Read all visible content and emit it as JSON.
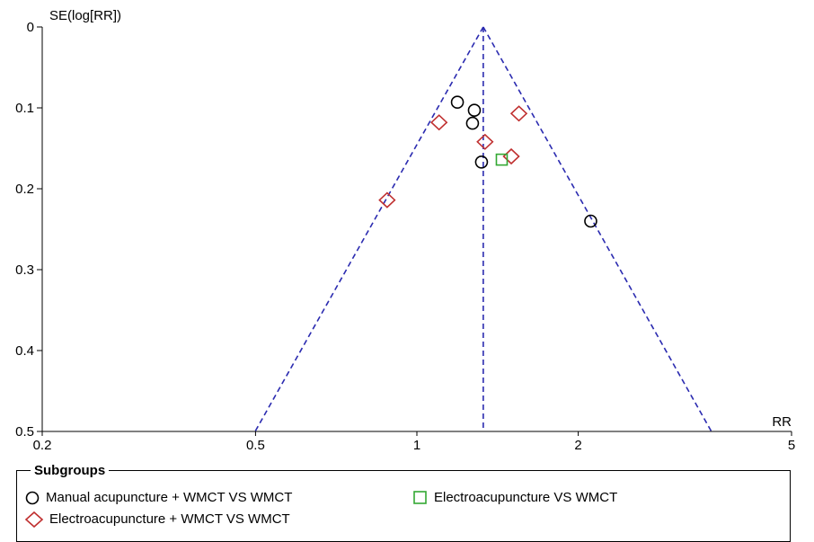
{
  "chart_data": {
    "type": "scatter",
    "title": "",
    "xlabel": "RR",
    "ylabel": "SE(log[RR])",
    "x_scale": "log",
    "xlim": [
      0.2,
      5
    ],
    "ylim": [
      0,
      0.5
    ],
    "y_inverted": true,
    "x_ticks": [
      0.2,
      0.5,
      1,
      2,
      5
    ],
    "x_tick_labels": [
      "0.2",
      "0.5",
      "1",
      "2",
      "5"
    ],
    "y_ticks": [
      0,
      0.1,
      0.2,
      0.3,
      0.4,
      0.5
    ],
    "y_tick_labels": [
      "0",
      "0.1",
      "0.2",
      "0.3",
      "0.4",
      "0.5"
    ],
    "pooled_estimate": 1.33,
    "funnel_line_color": "#2b2bb0",
    "legend": {
      "title": "Subgroups",
      "position": "bottom"
    },
    "series": [
      {
        "name": "Manual acupuncture + WMCT VS WMCT",
        "marker": "circle",
        "color": "#000000",
        "points": [
          {
            "x": 1.19,
            "y": 0.093
          },
          {
            "x": 1.28,
            "y": 0.103
          },
          {
            "x": 1.27,
            "y": 0.119
          },
          {
            "x": 1.32,
            "y": 0.167
          },
          {
            "x": 2.11,
            "y": 0.24
          }
        ]
      },
      {
        "name": "Electroacupuncture + WMCT VS WMCT",
        "marker": "diamond",
        "color": "#c03030",
        "points": [
          {
            "x": 1.1,
            "y": 0.118
          },
          {
            "x": 1.55,
            "y": 0.107
          },
          {
            "x": 1.34,
            "y": 0.142
          },
          {
            "x": 1.5,
            "y": 0.16
          },
          {
            "x": 0.88,
            "y": 0.214
          }
        ]
      },
      {
        "name": "Electroacupuncture VS WMCT",
        "marker": "square",
        "color": "#33a833",
        "points": [
          {
            "x": 1.44,
            "y": 0.164
          }
        ]
      }
    ]
  }
}
